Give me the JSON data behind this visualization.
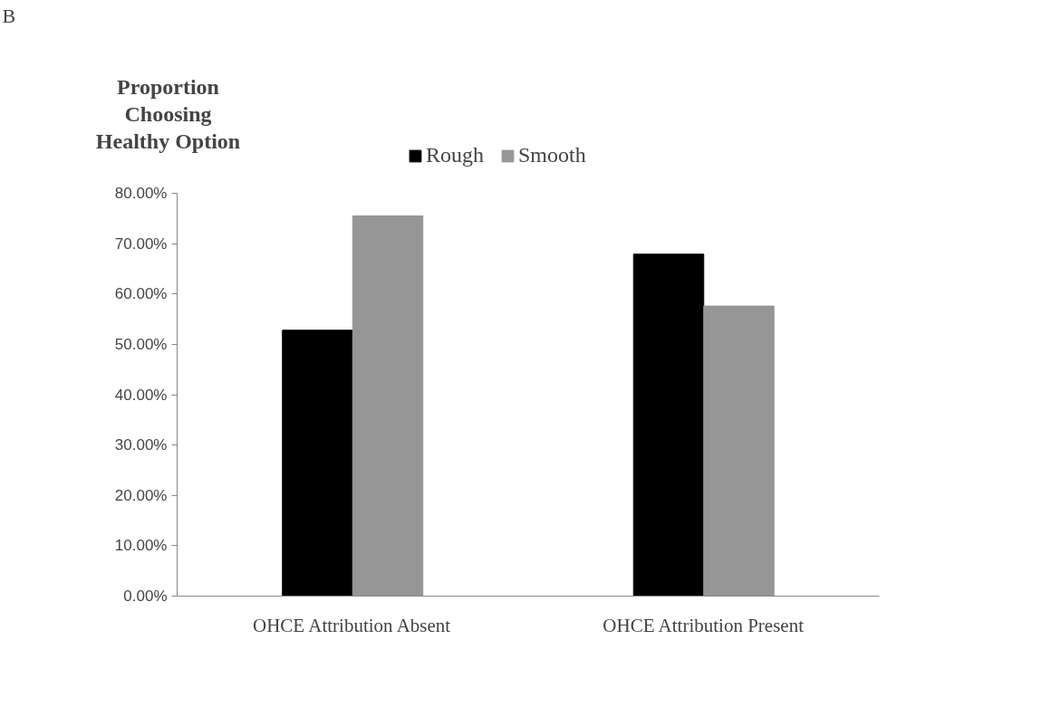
{
  "chart_data": {
    "type": "bar",
    "ylabel": "Proportion Choosing Healthy Option",
    "annotations": [
      "B"
    ],
    "categories": [
      "OHCE Attribution Absent",
      "OHCE Attribution Present"
    ],
    "series": [
      {
        "name": "Rough",
        "color": "#000000",
        "values": [
          52.8,
          67.9
        ]
      },
      {
        "name": "Smooth",
        "color": "#969696",
        "values": [
          75.5,
          57.6
        ]
      }
    ],
    "ylim": [
      0,
      80
    ],
    "yticks": [
      {
        "value": 0,
        "label": "0.00%"
      },
      {
        "value": 10,
        "label": "10.00%"
      },
      {
        "value": 20,
        "label": "20.00%"
      },
      {
        "value": 30,
        "label": "30.00%"
      },
      {
        "value": 40,
        "label": "40.00%"
      },
      {
        "value": 50,
        "label": "50.00%"
      },
      {
        "value": 60,
        "label": "60.00%"
      },
      {
        "value": 70,
        "label": "70.00%"
      },
      {
        "value": 80,
        "label": "80.00%"
      }
    ],
    "grid": false,
    "legend": "top"
  }
}
